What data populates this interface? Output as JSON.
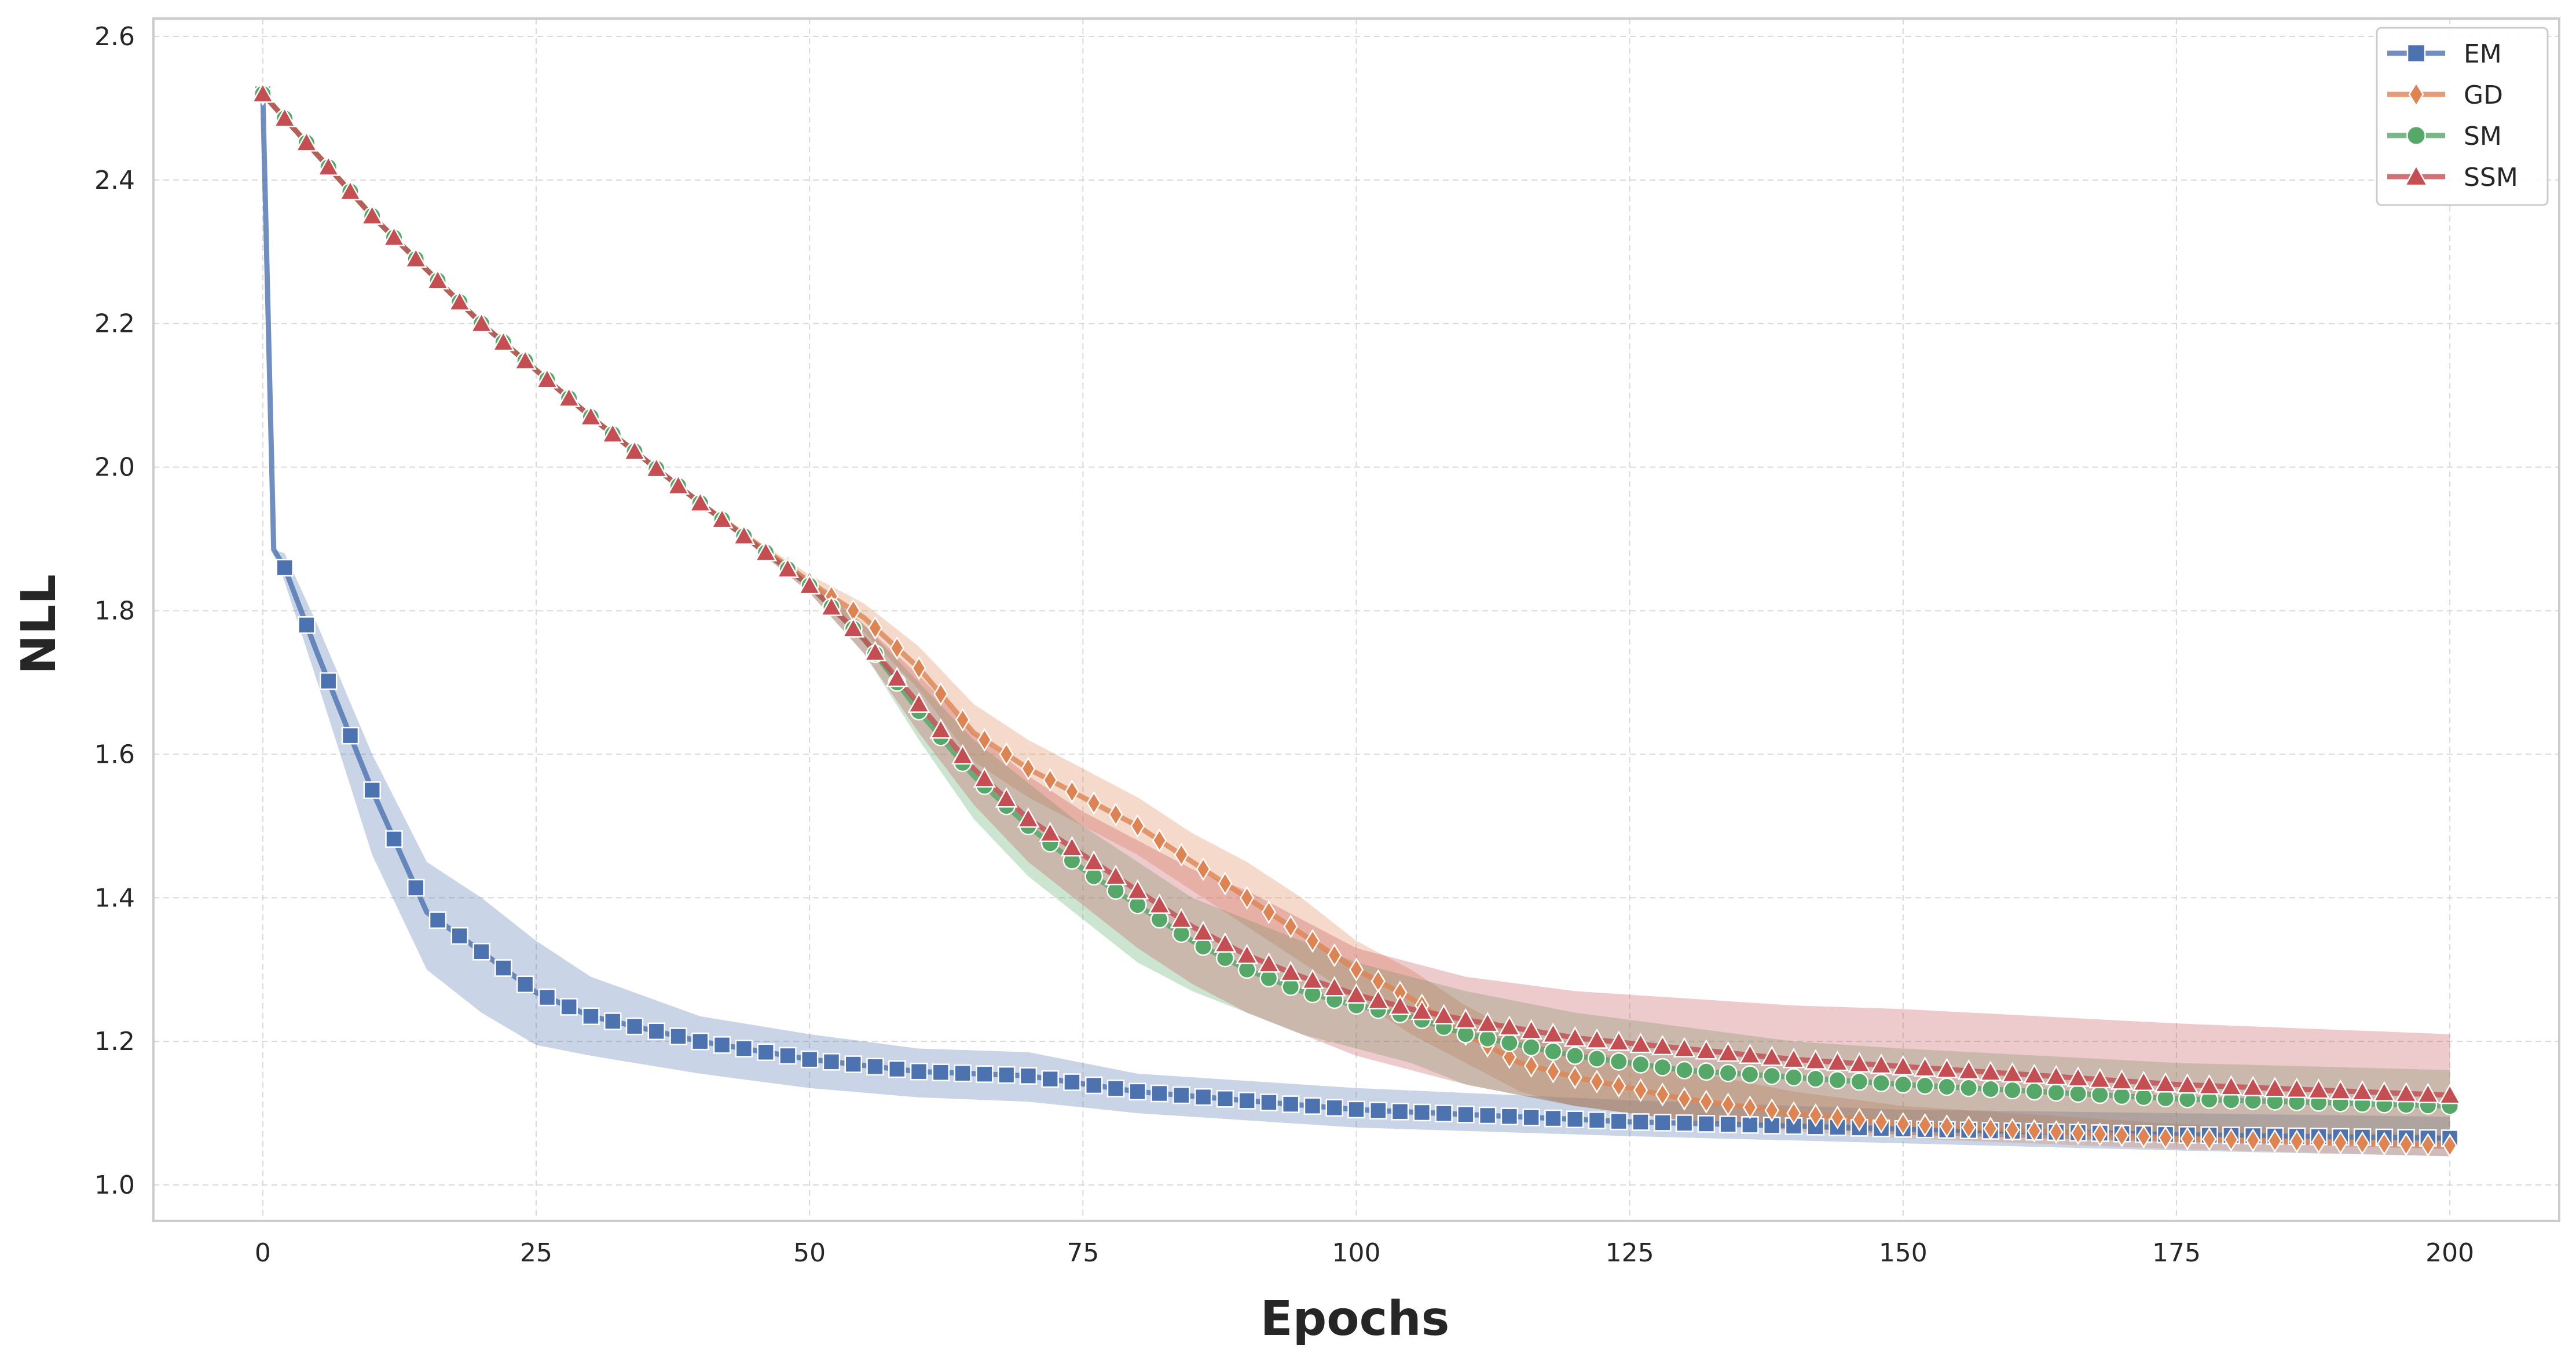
{
  "chart_data": {
    "type": "line",
    "xlabel": "Epochs",
    "ylabel": "NLL",
    "xlim": [
      -10,
      210
    ],
    "ylim": [
      0.95,
      2.625
    ],
    "x_ticks": [
      0,
      25,
      50,
      75,
      100,
      125,
      150,
      175,
      200
    ],
    "y_ticks": [
      1.0,
      1.2,
      1.4,
      1.6,
      1.8,
      2.0,
      2.2,
      2.4,
      2.6
    ],
    "x_tick_labels": [
      "0",
      "25",
      "50",
      "75",
      "100",
      "125",
      "150",
      "175",
      "200"
    ],
    "y_tick_labels": [
      "1.0",
      "1.2",
      "1.4",
      "1.6",
      "1.8",
      "2.0",
      "2.2",
      "2.4",
      "2.6"
    ],
    "grid": true,
    "legend_position": "top-right",
    "marker_every": 2,
    "series": [
      {
        "name": "EM",
        "color": "#4c72b0",
        "marker": "square",
        "x": [
          0,
          1,
          2,
          5,
          10,
          15,
          20,
          25,
          30,
          40,
          50,
          60,
          70,
          80,
          100,
          125,
          150,
          175,
          200
        ],
        "y": [
          2.52,
          1.885,
          1.86,
          1.74,
          1.55,
          1.38,
          1.325,
          1.268,
          1.235,
          1.2,
          1.175,
          1.158,
          1.152,
          1.13,
          1.105,
          1.088,
          1.078,
          1.07,
          1.065
        ],
        "lower": [
          2.52,
          1.885,
          1.84,
          1.7,
          1.46,
          1.3,
          1.24,
          1.195,
          1.18,
          1.155,
          1.135,
          1.122,
          1.116,
          1.1,
          1.08,
          1.068,
          1.058,
          1.048,
          1.04
        ],
        "upper": [
          2.52,
          1.885,
          1.88,
          1.78,
          1.6,
          1.45,
          1.4,
          1.34,
          1.29,
          1.235,
          1.21,
          1.19,
          1.185,
          1.155,
          1.135,
          1.118,
          1.105,
          1.1,
          1.095
        ]
      },
      {
        "name": "GD",
        "color": "#dd8452",
        "marker": "diamond",
        "x": [
          0,
          10,
          20,
          30,
          40,
          50,
          55,
          60,
          65,
          70,
          75,
          80,
          85,
          90,
          95,
          100,
          105,
          110,
          115,
          120,
          130,
          140,
          150,
          175,
          200
        ],
        "y": [
          2.52,
          2.35,
          2.2,
          2.07,
          1.95,
          1.84,
          1.79,
          1.72,
          1.63,
          1.58,
          1.54,
          1.5,
          1.45,
          1.4,
          1.35,
          1.3,
          1.26,
          1.21,
          1.17,
          1.15,
          1.12,
          1.1,
          1.085,
          1.065,
          1.055
        ],
        "lower": [
          2.52,
          2.35,
          2.2,
          2.07,
          1.95,
          1.83,
          1.77,
          1.69,
          1.59,
          1.54,
          1.5,
          1.46,
          1.41,
          1.36,
          1.31,
          1.26,
          1.21,
          1.17,
          1.13,
          1.11,
          1.09,
          1.075,
          1.065,
          1.05,
          1.04
        ],
        "upper": [
          2.52,
          2.35,
          2.2,
          2.07,
          1.95,
          1.85,
          1.81,
          1.75,
          1.67,
          1.62,
          1.58,
          1.54,
          1.49,
          1.45,
          1.4,
          1.34,
          1.3,
          1.25,
          1.21,
          1.19,
          1.16,
          1.13,
          1.11,
          1.085,
          1.07
        ]
      },
      {
        "name": "SM",
        "color": "#55a868",
        "marker": "circle",
        "x": [
          0,
          10,
          20,
          30,
          40,
          50,
          55,
          60,
          65,
          70,
          75,
          80,
          85,
          90,
          95,
          100,
          105,
          110,
          120,
          130,
          140,
          150,
          175,
          200
        ],
        "y": [
          2.52,
          2.35,
          2.2,
          2.07,
          1.95,
          1.835,
          1.76,
          1.66,
          1.57,
          1.5,
          1.44,
          1.39,
          1.34,
          1.3,
          1.27,
          1.25,
          1.235,
          1.21,
          1.18,
          1.16,
          1.15,
          1.14,
          1.12,
          1.11
        ],
        "lower": [
          2.52,
          2.35,
          2.2,
          2.07,
          1.95,
          1.825,
          1.74,
          1.62,
          1.51,
          1.43,
          1.37,
          1.31,
          1.27,
          1.24,
          1.21,
          1.19,
          1.17,
          1.14,
          1.11,
          1.09,
          1.08,
          1.07,
          1.06,
          1.055
        ],
        "upper": [
          2.52,
          2.35,
          2.2,
          2.07,
          1.95,
          1.845,
          1.78,
          1.7,
          1.62,
          1.56,
          1.5,
          1.45,
          1.4,
          1.37,
          1.34,
          1.31,
          1.29,
          1.27,
          1.24,
          1.22,
          1.2,
          1.19,
          1.17,
          1.16
        ]
      },
      {
        "name": "SSM",
        "color": "#c44e52",
        "marker": "triangle",
        "x": [
          0,
          10,
          20,
          30,
          40,
          50,
          55,
          60,
          65,
          70,
          75,
          80,
          85,
          90,
          95,
          100,
          105,
          110,
          120,
          130,
          140,
          150,
          175,
          200
        ],
        "y": [
          2.52,
          2.35,
          2.2,
          2.07,
          1.95,
          1.835,
          1.76,
          1.67,
          1.58,
          1.51,
          1.46,
          1.41,
          1.36,
          1.32,
          1.29,
          1.265,
          1.245,
          1.23,
          1.205,
          1.19,
          1.175,
          1.165,
          1.14,
          1.125
        ],
        "lower": [
          2.52,
          2.35,
          2.2,
          2.07,
          1.95,
          1.825,
          1.74,
          1.63,
          1.53,
          1.45,
          1.39,
          1.33,
          1.28,
          1.24,
          1.21,
          1.18,
          1.16,
          1.14,
          1.11,
          1.09,
          1.08,
          1.07,
          1.06,
          1.05
        ],
        "upper": [
          2.52,
          2.35,
          2.2,
          2.07,
          1.95,
          1.845,
          1.78,
          1.71,
          1.63,
          1.57,
          1.52,
          1.48,
          1.44,
          1.41,
          1.37,
          1.33,
          1.31,
          1.29,
          1.27,
          1.26,
          1.25,
          1.245,
          1.225,
          1.21
        ]
      }
    ]
  }
}
